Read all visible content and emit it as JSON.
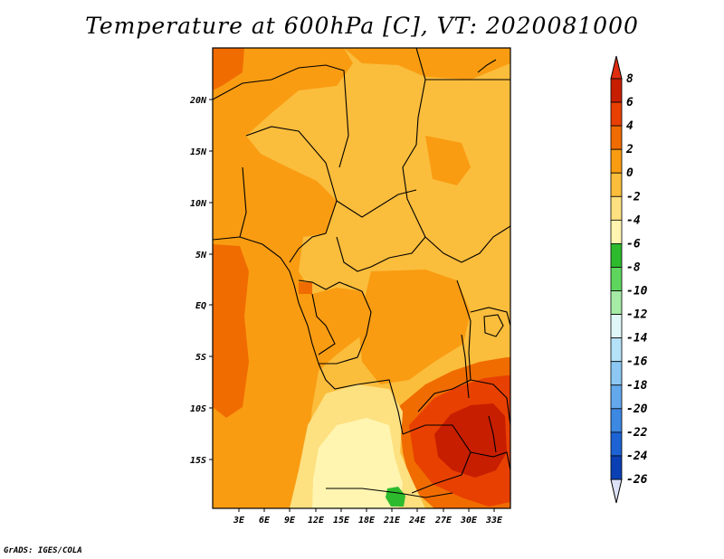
{
  "title": "Temperature at 600hPa [C], VT: 2020081000",
  "credit": "GrADS: IGES/COLA",
  "map": {
    "variable": "Temperature",
    "level": "600hPa",
    "units": "C",
    "valid_time": "2020081000",
    "lat_labels": [
      "20N",
      "15N",
      "10N",
      "5N",
      "EQ",
      "5S",
      "10S",
      "15S"
    ],
    "lon_labels": [
      "3E",
      "6E",
      "9E",
      "12E",
      "15E",
      "18E",
      "21E",
      "24E",
      "27E",
      "30E",
      "33E"
    ]
  },
  "colorbar": {
    "labels": [
      "8",
      "6",
      "4",
      "2",
      "0",
      "-2",
      "-4",
      "-6",
      "-8",
      "-10",
      "-12",
      "-14",
      "-16",
      "-18",
      "-20",
      "-22",
      "-24",
      "-26"
    ],
    "colors": [
      "#c81e00",
      "#e84000",
      "#f06c00",
      "#f99c12",
      "#fbbd3c",
      "#fde080",
      "#fff5b0",
      "#2dba2d",
      "#5ed65e",
      "#a5eba5",
      "#e0f7f7",
      "#b4e2f8",
      "#8cc8f3",
      "#63a8ec",
      "#3d88e2",
      "#1d63d3",
      "#0b40b4",
      "#0a1e8c"
    ],
    "top_color": "#e02c10",
    "bottom_color": "#dde2f8"
  },
  "palette": {
    "t_0_2": "#fbbd3c",
    "t_2_4": "#f99c12",
    "t_4_6": "#f06c00",
    "t_6_8": "#e84000",
    "t_8": "#c81e00",
    "t_m2_0": "#fde080",
    "t_m4_m2": "#fff5b0",
    "t_m6_m4": "#2dba2d",
    "border": "#000000"
  }
}
